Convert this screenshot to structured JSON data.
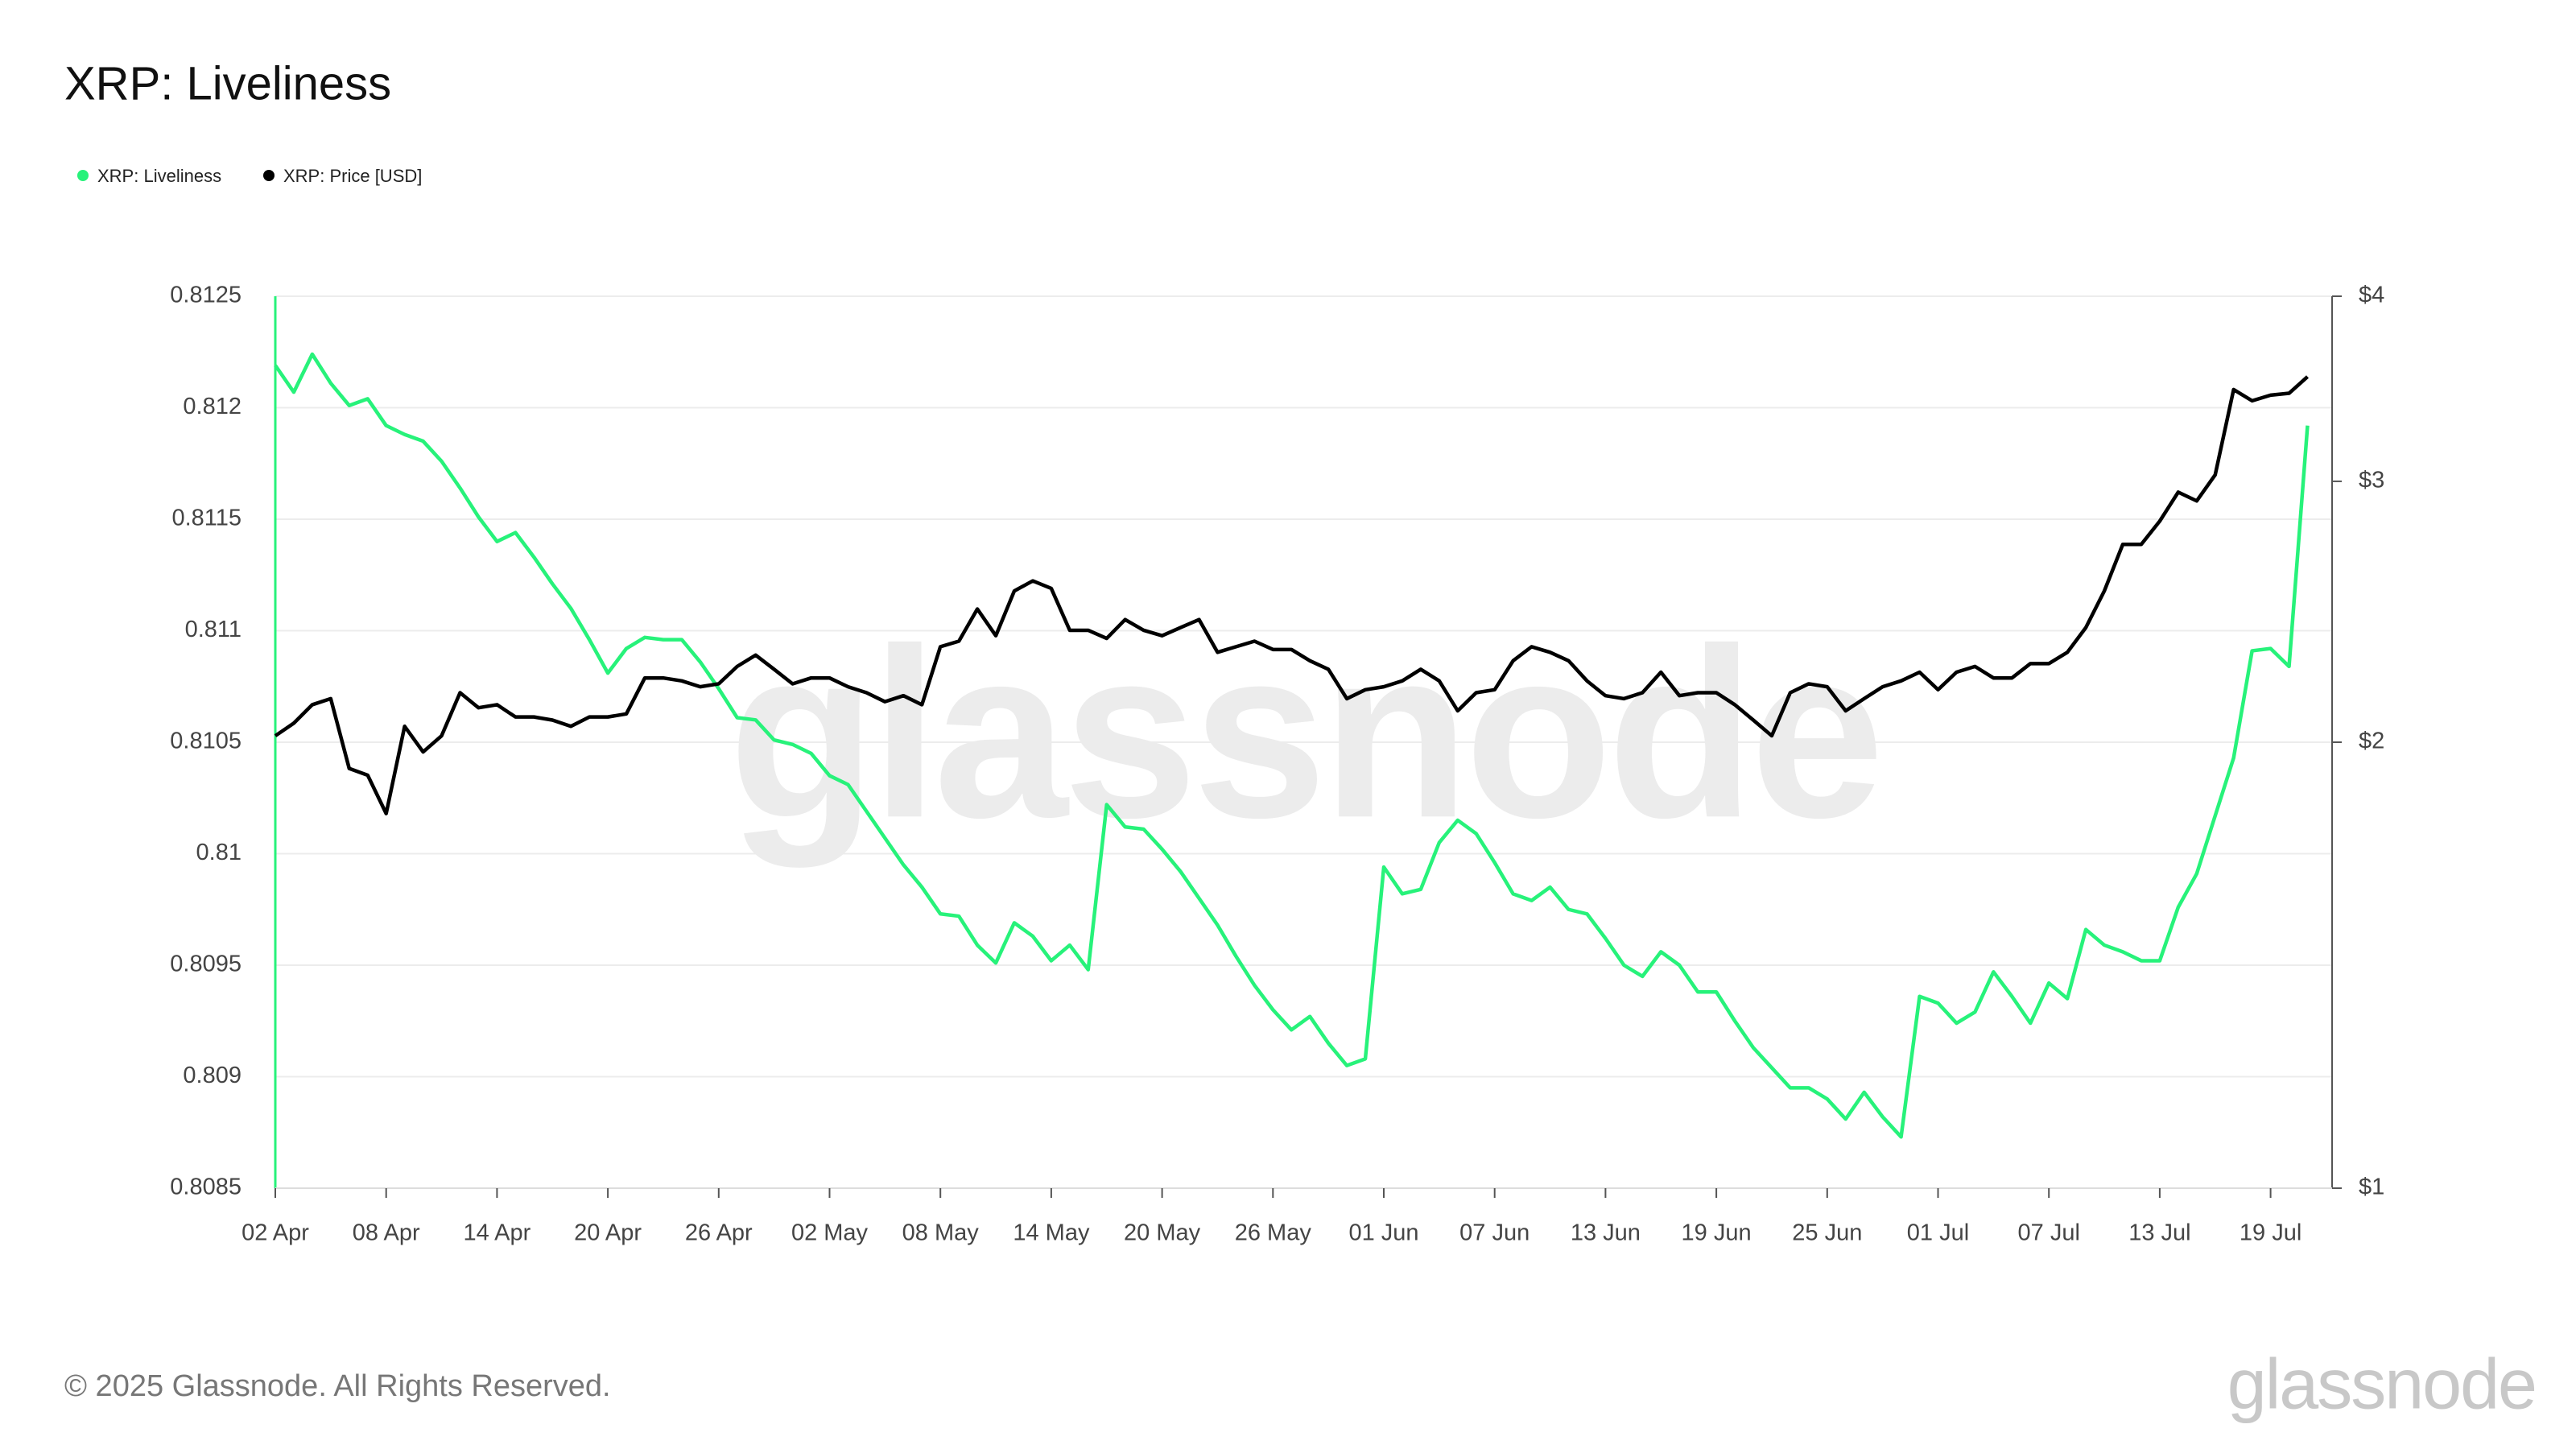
{
  "chart_data": {
    "type": "line",
    "title": "XRP: Liveliness",
    "watermark": "glassnode",
    "footer": "© 2025 Glassnode. All Rights Reserved.",
    "x": [
      "02 Apr",
      "03 Apr",
      "04 Apr",
      "05 Apr",
      "06 Apr",
      "07 Apr",
      "08 Apr",
      "09 Apr",
      "10 Apr",
      "11 Apr",
      "12 Apr",
      "13 Apr",
      "14 Apr",
      "15 Apr",
      "16 Apr",
      "17 Apr",
      "18 Apr",
      "19 Apr",
      "20 Apr",
      "21 Apr",
      "22 Apr",
      "23 Apr",
      "24 Apr",
      "25 Apr",
      "26 Apr",
      "27 Apr",
      "28 Apr",
      "29 Apr",
      "30 Apr",
      "01 May",
      "02 May",
      "03 May",
      "04 May",
      "05 May",
      "06 May",
      "07 May",
      "08 May",
      "09 May",
      "10 May",
      "11 May",
      "12 May",
      "13 May",
      "14 May",
      "15 May",
      "16 May",
      "17 May",
      "18 May",
      "19 May",
      "20 May",
      "21 May",
      "22 May",
      "23 May",
      "24 May",
      "25 May",
      "26 May",
      "27 May",
      "28 May",
      "29 May",
      "30 May",
      "31 May",
      "01 Jun",
      "02 Jun",
      "03 Jun",
      "04 Jun",
      "05 Jun",
      "06 Jun",
      "07 Jun",
      "08 Jun",
      "09 Jun",
      "10 Jun",
      "11 Jun",
      "12 Jun",
      "13 Jun",
      "14 Jun",
      "15 Jun",
      "16 Jun",
      "17 Jun",
      "18 Jun",
      "19 Jun",
      "20 Jun",
      "21 Jun",
      "22 Jun",
      "23 Jun",
      "24 Jun",
      "25 Jun",
      "26 Jun",
      "27 Jun",
      "28 Jun",
      "29 Jun",
      "30 Jun",
      "01 Jul",
      "02 Jul",
      "03 Jul",
      "04 Jul",
      "05 Jul",
      "06 Jul",
      "07 Jul",
      "08 Jul",
      "09 Jul",
      "10 Jul",
      "11 Jul",
      "12 Jul",
      "13 Jul",
      "14 Jul",
      "15 Jul",
      "16 Jul",
      "17 Jul",
      "18 Jul",
      "19 Jul",
      "20 Jul",
      "21 Jul"
    ],
    "series": [
      {
        "name": "XRP: Liveliness",
        "color": "#27f27a",
        "axis": "y",
        "values": [
          0.81219,
          0.81207,
          0.81224,
          0.81211,
          0.81201,
          0.81204,
          0.81192,
          0.81188,
          0.81185,
          0.81176,
          0.81164,
          0.81151,
          0.8114,
          0.81144,
          0.81133,
          0.81121,
          0.8111,
          0.81096,
          0.81081,
          0.81092,
          0.81097,
          0.81096,
          0.81096,
          0.81086,
          0.81074,
          0.81061,
          0.8106,
          0.81051,
          0.81049,
          0.81045,
          0.81035,
          0.81031,
          0.81019,
          0.81007,
          0.80995,
          0.80985,
          0.80973,
          0.80972,
          0.80959,
          0.80951,
          0.80969,
          0.80963,
          0.80952,
          0.80959,
          0.80948,
          0.81022,
          0.81012,
          0.81011,
          0.81002,
          0.80992,
          0.8098,
          0.80968,
          0.80954,
          0.80941,
          0.8093,
          0.80921,
          0.80927,
          0.80915,
          0.80905,
          0.80908,
          0.80994,
          0.80982,
          0.80984,
          0.81005,
          0.81015,
          0.81009,
          0.80996,
          0.80982,
          0.80979,
          0.80985,
          0.80975,
          0.80973,
          0.80962,
          0.8095,
          0.80945,
          0.80956,
          0.8095,
          0.80938,
          0.80938,
          0.80925,
          0.80913,
          0.80904,
          0.80895,
          0.80895,
          0.8089,
          0.80881,
          0.80893,
          0.80882,
          0.80873,
          0.80936,
          0.80933,
          0.80924,
          0.80929,
          0.80947,
          0.80936,
          0.80924,
          0.80942,
          0.80935,
          0.80966,
          0.80959,
          0.80956,
          0.80952,
          0.80952,
          0.80976,
          0.80991,
          0.81017,
          0.81043,
          0.81091,
          0.81092,
          0.81084,
          0.81192
        ]
      },
      {
        "name": "XRP: Price [USD]",
        "color": "#000000",
        "axis": "y2",
        "values": [
          2.02,
          2.06,
          2.12,
          2.14,
          1.92,
          1.9,
          1.79,
          2.05,
          1.97,
          2.02,
          2.16,
          2.11,
          2.12,
          2.08,
          2.08,
          2.07,
          2.05,
          2.08,
          2.08,
          2.09,
          2.21,
          2.21,
          2.2,
          2.18,
          2.19,
          2.25,
          2.29,
          2.24,
          2.19,
          2.21,
          2.21,
          2.18,
          2.16,
          2.13,
          2.15,
          2.12,
          2.32,
          2.34,
          2.46,
          2.36,
          2.53,
          2.57,
          2.54,
          2.38,
          2.38,
          2.35,
          2.42,
          2.38,
          2.36,
          2.39,
          2.42,
          2.3,
          2.32,
          2.34,
          2.31,
          2.31,
          2.27,
          2.24,
          2.14,
          2.17,
          2.18,
          2.2,
          2.24,
          2.2,
          2.1,
          2.16,
          2.17,
          2.27,
          2.32,
          2.3,
          2.27,
          2.2,
          2.15,
          2.14,
          2.16,
          2.23,
          2.15,
          2.16,
          2.16,
          2.12,
          2.07,
          2.02,
          2.16,
          2.19,
          2.18,
          2.1,
          2.14,
          2.18,
          2.2,
          2.23,
          2.17,
          2.23,
          2.25,
          2.21,
          2.21,
          2.26,
          2.26,
          2.3,
          2.39,
          2.53,
          2.72,
          2.72,
          2.82,
          2.95,
          2.91,
          3.03,
          3.46,
          3.4,
          3.43,
          3.44,
          3.53
        ]
      }
    ],
    "ylim": [
      0.8085,
      0.8125
    ],
    "yticks": [
      0.8085,
      0.809,
      0.8095,
      0.81,
      0.8105,
      0.811,
      0.8115,
      0.812,
      0.8125
    ],
    "y2lim": [
      1,
      4
    ],
    "y2scale": "log",
    "y2ticks": [
      {
        "value": 1,
        "label": "$1"
      },
      {
        "value": 2,
        "label": "$2"
      },
      {
        "value": 3,
        "label": "$3"
      },
      {
        "value": 4,
        "label": "$4"
      }
    ],
    "grid": true
  }
}
